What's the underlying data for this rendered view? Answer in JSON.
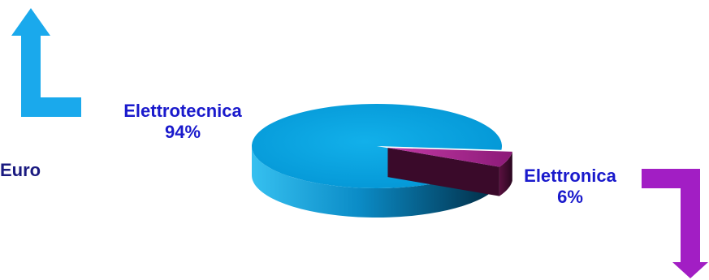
{
  "chart_data": {
    "type": "pie",
    "title": "",
    "categories": [
      "Elettrotecnica",
      "Elettronica"
    ],
    "values": [
      94,
      6
    ],
    "value_labels": [
      "94%",
      "6%"
    ],
    "colors": [
      "#0aa6e3",
      "#9a1d87"
    ],
    "style": "3d",
    "annotations": [
      "Euro"
    ]
  },
  "colors": {
    "label_text": "#1a1acc",
    "euro_text": "#1a1a80",
    "arrow_up": "#1aa9ec",
    "arrow_down": "#a21ec4"
  },
  "icons": {
    "up_arrow": "bent-arrow-up-icon",
    "down_arrow": "bent-arrow-down-icon"
  }
}
